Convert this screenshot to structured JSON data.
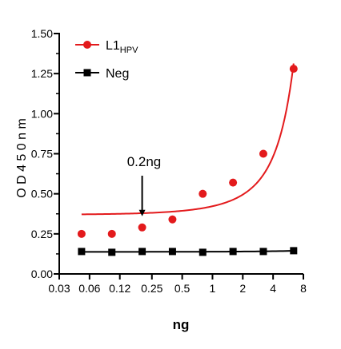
{
  "chart_data": {
    "type": "scatter",
    "xlabel": "ng",
    "ylabel": "O D  4 5 0  n m",
    "xscale": "log2",
    "xlim": [
      0.03,
      8
    ],
    "ylim": [
      0,
      1.5
    ],
    "x_ticks": [
      0.03,
      0.06,
      0.12,
      0.25,
      0.5,
      1,
      2,
      4,
      8
    ],
    "x_tick_labels": [
      "0.03",
      "0.06",
      "0.12",
      "0.25",
      "0.5",
      "1",
      "2",
      "4",
      "8"
    ],
    "y_ticks": [
      0,
      0.25,
      0.5,
      0.75,
      1.0,
      1.25,
      1.5
    ],
    "y_tick_labels": [
      "0.00",
      "0.25",
      "0.50",
      "0.75",
      "1.00",
      "1.25",
      "1.50"
    ],
    "legend_position": "top-left",
    "series": [
      {
        "name": "L1",
        "name_subscript": "HPV",
        "color": "#e31a1c",
        "marker": "circle",
        "x": [
          0.05,
          0.1,
          0.2,
          0.4,
          0.8,
          1.6,
          3.2,
          6.4
        ],
        "y": [
          0.25,
          0.25,
          0.29,
          0.34,
          0.5,
          0.57,
          0.75,
          1.28
        ],
        "fit": "exponential"
      },
      {
        "name": "Neg",
        "color": "#000000",
        "marker": "square",
        "x": [
          0.05,
          0.1,
          0.2,
          0.4,
          0.8,
          1.6,
          3.2,
          6.4
        ],
        "y": [
          0.14,
          0.135,
          0.14,
          0.14,
          0.135,
          0.14,
          0.14,
          0.145
        ],
        "fit": "linear"
      }
    ],
    "annotations": [
      {
        "text": "0.2ng",
        "arrow_to_x": 0.2,
        "arrow_to_y": 0.29
      }
    ]
  }
}
